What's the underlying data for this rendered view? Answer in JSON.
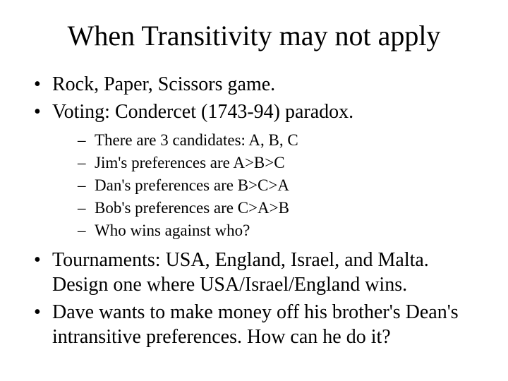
{
  "title": "When Transitivity may not apply",
  "bullets": {
    "b1": "Rock, Paper, Scissors game.",
    "b2": "Voting: Condercet (1743-94) paradox.",
    "b2_sub": {
      "s1": "There are 3 candidates: A, B, C",
      "s2": "Jim's preferences are A>B>C",
      "s3": "Dan's preferences are B>C>A",
      "s4": "Bob's preferences are C>A>B",
      "s5": "Who wins against who?"
    },
    "b3": "Tournaments: USA, England, Israel, and Malta. Design one where USA/Israel/England wins.",
    "b4": "Dave wants to make money off his brother's Dean's intransitive preferences. How can he do it?"
  }
}
